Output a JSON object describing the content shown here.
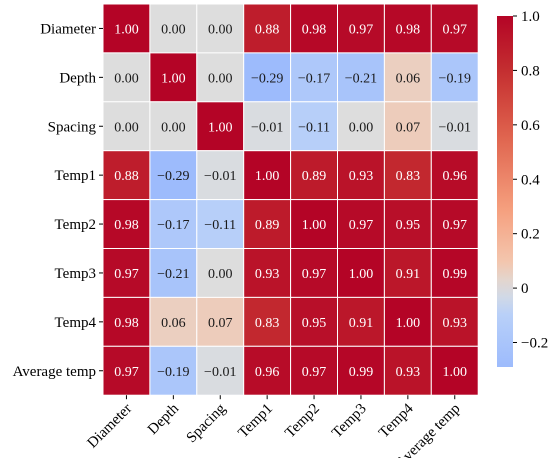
{
  "chart_data": {
    "type": "heatmap",
    "title": "",
    "xlabel": "",
    "ylabel": "",
    "row_labels": [
      "Diameter",
      "Depth",
      "Spacing",
      "Temp1",
      "Temp2",
      "Temp3",
      "Temp4",
      "Average temp"
    ],
    "col_labels": [
      "Diameter",
      "Depth",
      "Spacing",
      "Temp1",
      "Temp2",
      "Temp3",
      "Temp4",
      "Average temp"
    ],
    "values": [
      [
        1.0,
        0.0,
        0.0,
        0.88,
        0.98,
        0.97,
        0.98,
        0.97
      ],
      [
        0.0,
        1.0,
        0.0,
        -0.29,
        -0.17,
        -0.21,
        0.06,
        -0.19
      ],
      [
        0.0,
        0.0,
        1.0,
        -0.01,
        -0.11,
        0.0,
        0.07,
        -0.01
      ],
      [
        0.88,
        -0.29,
        -0.01,
        1.0,
        0.89,
        0.93,
        0.83,
        0.96
      ],
      [
        0.98,
        -0.17,
        -0.11,
        0.89,
        1.0,
        0.97,
        0.95,
        0.97
      ],
      [
        0.97,
        -0.21,
        0.0,
        0.93,
        0.97,
        1.0,
        0.91,
        0.99
      ],
      [
        0.98,
        0.06,
        0.07,
        0.83,
        0.95,
        0.91,
        1.0,
        0.93
      ],
      [
        0.97,
        -0.19,
        -0.01,
        0.96,
        0.97,
        0.99,
        0.93,
        1.0
      ]
    ],
    "annotations": [
      [
        "1.00",
        "0.00",
        "0.00",
        "0.88",
        "0.98",
        "0.97",
        "0.98",
        "0.97"
      ],
      [
        "0.00",
        "1.00",
        "0.00",
        "−0.29",
        "−0.17",
        "−0.21",
        "0.06",
        "−0.19"
      ],
      [
        "0.00",
        "0.00",
        "1.00",
        "−0.01",
        "−0.11",
        "0.00",
        "0.07",
        "−0.01"
      ],
      [
        "0.88",
        "−0.29",
        "−0.01",
        "1.00",
        "0.89",
        "0.93",
        "0.83",
        "0.96"
      ],
      [
        "0.98",
        "−0.17",
        "−0.11",
        "0.89",
        "1.00",
        "0.97",
        "0.95",
        "0.97"
      ],
      [
        "0.97",
        "−0.21",
        "0.00",
        "0.93",
        "0.97",
        "1.00",
        "0.91",
        "0.99"
      ],
      [
        "0.98",
        "0.06",
        "0.07",
        "0.83",
        "0.95",
        "0.91",
        "1.00",
        "0.93"
      ],
      [
        "0.97",
        "−0.19",
        "−0.01",
        "0.96",
        "0.97",
        "0.99",
        "0.93",
        "1.00"
      ]
    ],
    "colormap": "coolwarm",
    "center": 0,
    "vmin": -0.29,
    "vmax": 1.0,
    "colorbar": {
      "ticks": [
        -0.2,
        0,
        0.2,
        0.4,
        0.6,
        0.8,
        1.0
      ],
      "tick_labels": [
        "−0.2",
        "0",
        "0.2",
        "0.4",
        "0.6",
        "0.8",
        "1.0"
      ],
      "placement": "right"
    },
    "x_tick_rotation": 45,
    "grid": false
  }
}
